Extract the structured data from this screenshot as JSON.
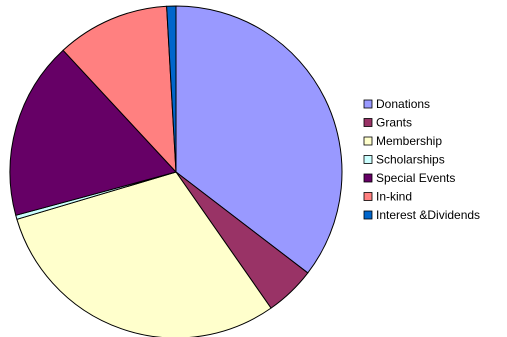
{
  "chart_data": {
    "type": "pie",
    "title": "",
    "legend_position": "right",
    "series": [
      {
        "name": "Donations",
        "value": 35.4,
        "color": "#9999FF"
      },
      {
        "name": "Grants",
        "value": 4.9,
        "color": "#993366"
      },
      {
        "name": "Membership",
        "value": 30.1,
        "color": "#FFFFCC"
      },
      {
        "name": "Scholarships",
        "value": 0.4,
        "color": "#CCFFFF"
      },
      {
        "name": "Special Events",
        "value": 17.3,
        "color": "#660066"
      },
      {
        "name": "In-kind",
        "value": 11.0,
        "color": "#FF8080"
      },
      {
        "name": "Interest &Dividends",
        "value": 0.9,
        "color": "#0066CC"
      }
    ]
  }
}
